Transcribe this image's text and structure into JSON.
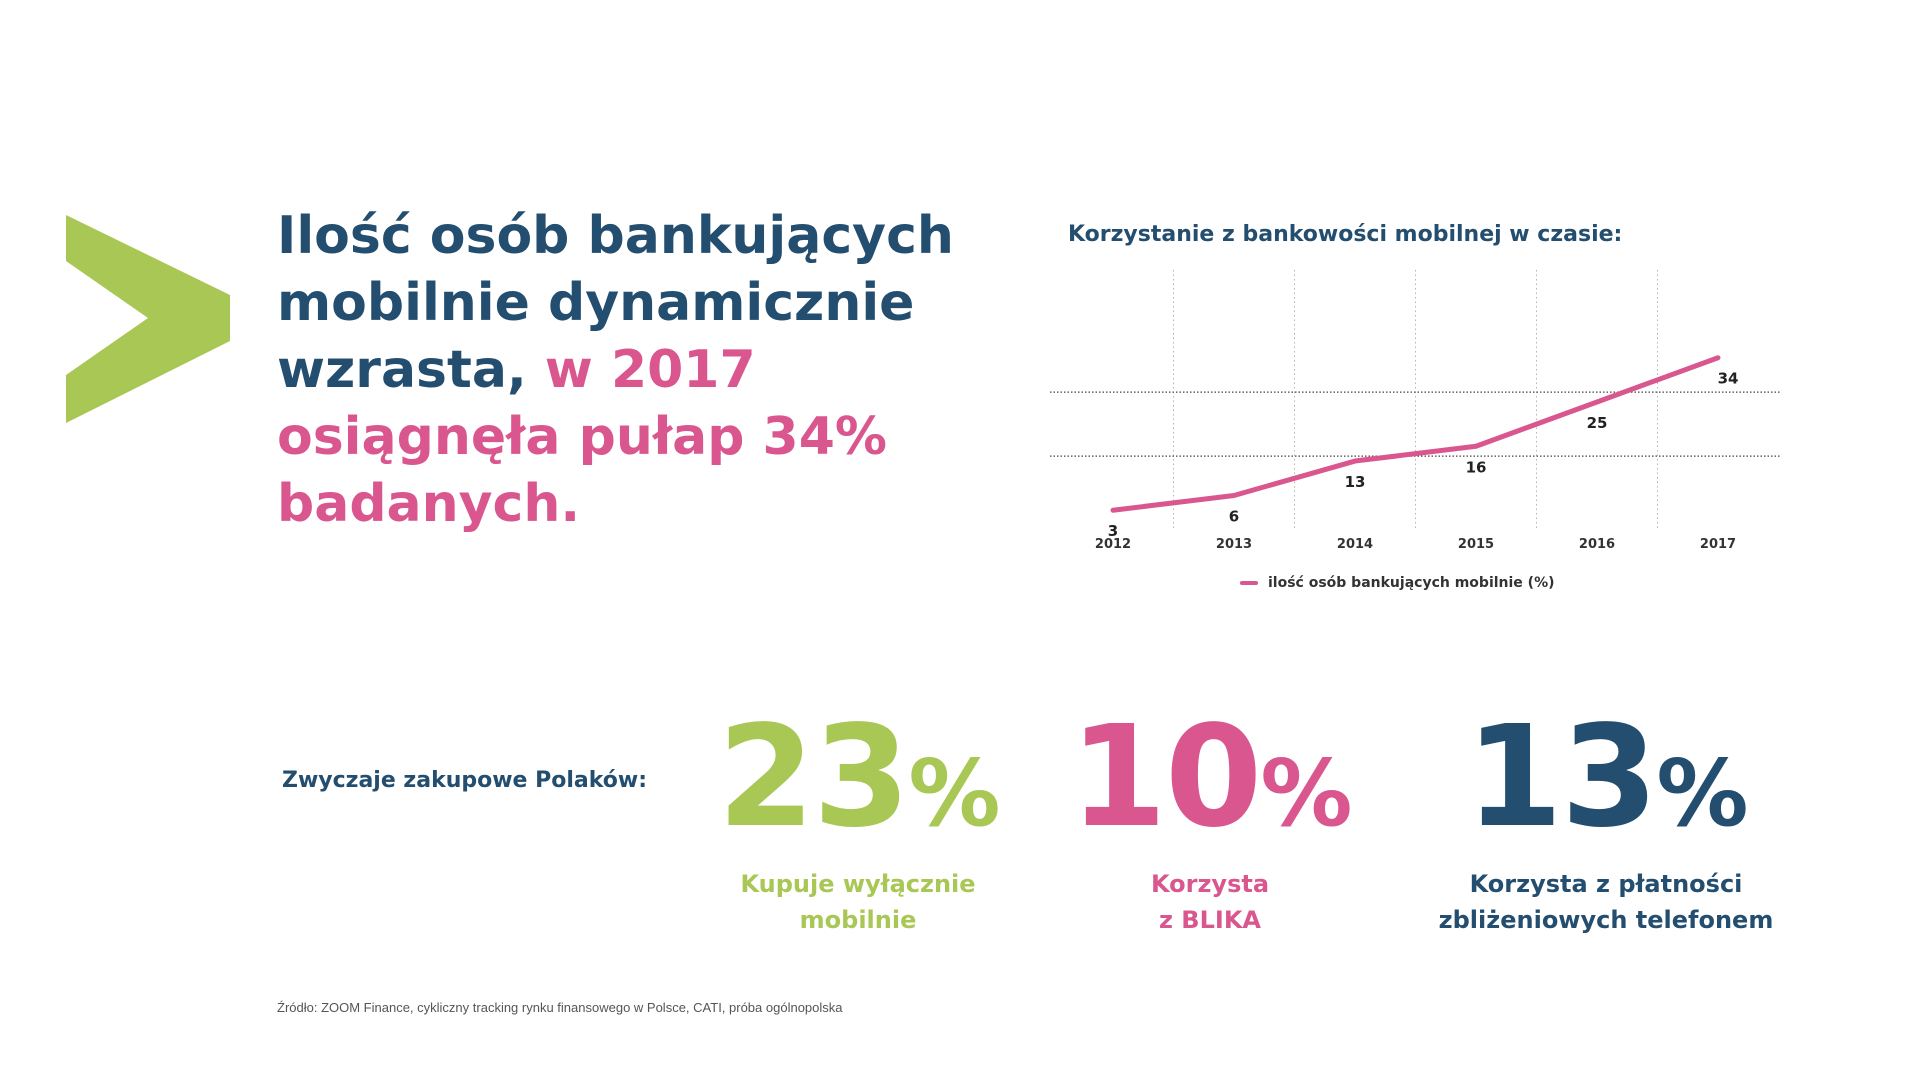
{
  "colors": {
    "navy": "#234e6f",
    "pink": "#d9578e",
    "green": "#a8c754",
    "text": "#333333"
  },
  "headline": {
    "part1": "Ilość osób bankujących mobilnie dynamicznie wzrasta, ",
    "part2": "w 2017 osiągnęła pułap 34% badanych."
  },
  "chart_data": {
    "type": "line",
    "title": "Korzystanie z bankowości mobilnej w czasie:",
    "xlabel": "",
    "ylabel": "",
    "x": [
      "2012",
      "2013",
      "2014",
      "2015",
      "2016",
      "2017"
    ],
    "ylim": [
      0,
      40
    ],
    "series": [
      {
        "name": "ilość osób bankujących mobilnie (%)",
        "values": [
          3,
          6,
          13,
          16,
          25,
          34
        ],
        "color": "#d9578e"
      }
    ],
    "grid": {
      "horizontal_dotted_at": [
        14,
        27
      ],
      "vertical_dotted": true
    },
    "legend": "bottom-center"
  },
  "habits": {
    "label": "Zwyczaje zakupowe Polaków:",
    "stats": [
      {
        "value": "23",
        "unit": "%",
        "line1": "Kupuje wyłącznie",
        "line2": "mobilnie",
        "color": "#a8c754"
      },
      {
        "value": "10",
        "unit": "%",
        "line1": "Korzysta",
        "line2": "z BLIKA",
        "color": "#d9578e"
      },
      {
        "value": "13",
        "unit": "%",
        "line1": "Korzysta z płatności",
        "line2": "zbliżeniowych telefonem",
        "color": "#234e6f"
      }
    ]
  },
  "source": "Źródło: ZOOM Finance, cykliczny tracking rynku finansowego w Polsce, CATI, próba ogólnopolska"
}
